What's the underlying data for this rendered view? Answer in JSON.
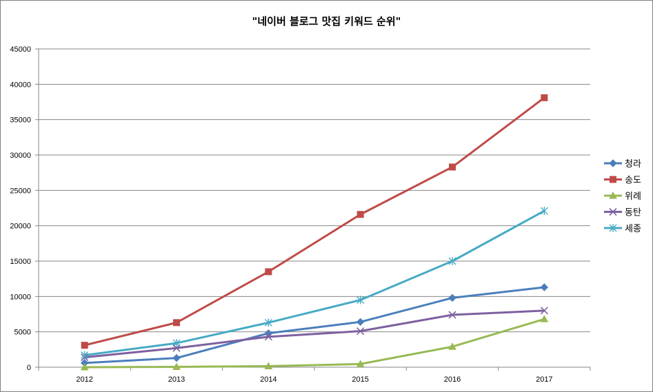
{
  "chart_data": {
    "type": "line",
    "title": "\"네이버 블로그 맛집  키워드 순위\"",
    "xlabel": "",
    "ylabel": "",
    "categories": [
      "2012",
      "2013",
      "2014",
      "2015",
      "2016",
      "2017"
    ],
    "ylim": [
      0,
      45000
    ],
    "yticks": [
      0,
      5000,
      10000,
      15000,
      20000,
      25000,
      30000,
      35000,
      40000,
      45000
    ],
    "grid": true,
    "legend_position": "right",
    "series": [
      {
        "name": "청라",
        "color": "#4a7ebb",
        "marker": "diamond",
        "values": [
          600,
          1300,
          4800,
          6400,
          9800,
          11300
        ]
      },
      {
        "name": "송도",
        "color": "#be4b48",
        "marker": "square",
        "values": [
          3100,
          6300,
          13500,
          21600,
          28300,
          38100
        ]
      },
      {
        "name": "위례",
        "color": "#98b954",
        "marker": "triangle",
        "values": [
          0,
          50,
          150,
          450,
          2900,
          6800
        ]
      },
      {
        "name": "동탄",
        "color": "#7d60a0",
        "marker": "x",
        "values": [
          1400,
          2700,
          4300,
          5100,
          7400,
          8000
        ]
      },
      {
        "name": "세종",
        "color": "#46aac5",
        "marker": "star",
        "values": [
          1700,
          3400,
          6300,
          9500,
          15000,
          22100
        ]
      }
    ]
  }
}
